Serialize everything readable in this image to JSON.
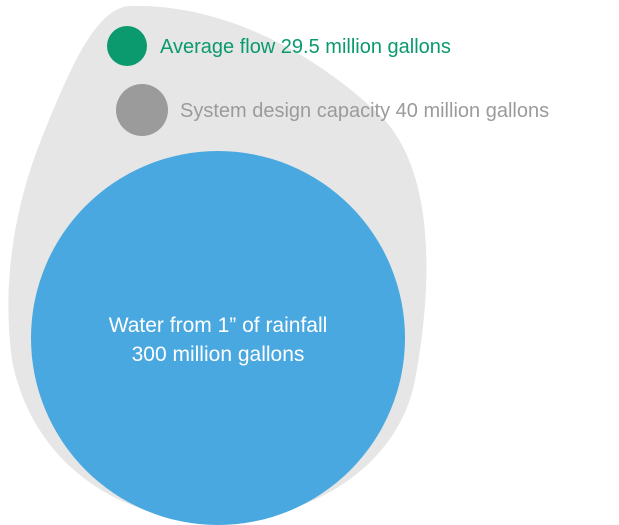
{
  "items": [
    {
      "label": "Average flow 29.5 million gallons",
      "value_million_gallons": 29.5,
      "color": "#0a9a6e"
    },
    {
      "label": "System design capacity 40 million gallons",
      "value_million_gallons": 40,
      "color": "#9b9b9b"
    },
    {
      "label_line1": "Water from 1” of rainfall",
      "label_line2": "300 million gallons",
      "value_million_gallons": 300,
      "color": "#4aa8e0"
    }
  ],
  "colors": {
    "drop": "#e6e6e6",
    "label_on_circle": "#ffffff"
  }
}
